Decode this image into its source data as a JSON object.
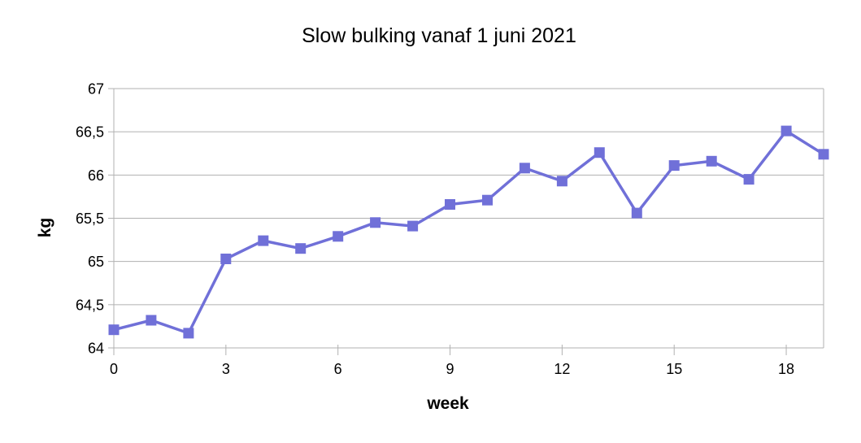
{
  "chart_data": {
    "type": "line",
    "title": "Slow bulking vanaf 1 juni 2021",
    "xlabel": "week",
    "ylabel": "kg",
    "x": [
      0,
      1,
      2,
      3,
      4,
      5,
      6,
      7,
      8,
      9,
      10,
      11,
      12,
      13,
      14,
      15,
      16,
      17,
      18,
      19
    ],
    "series": [
      {
        "name": "kg",
        "values": [
          64.21,
          64.32,
          64.17,
          65.03,
          65.24,
          65.15,
          65.29,
          65.45,
          65.41,
          65.66,
          65.71,
          66.08,
          65.93,
          66.26,
          65.56,
          66.11,
          66.16,
          65.95,
          66.51,
          66.24
        ]
      }
    ],
    "xlim": [
      0,
      19
    ],
    "ylim": [
      64,
      67
    ],
    "x_ticks": [
      0,
      3,
      6,
      9,
      12,
      15,
      18
    ],
    "x_tick_labels": [
      "0",
      "3",
      "6",
      "9",
      "12",
      "15",
      "18"
    ],
    "y_ticks": [
      64,
      64.5,
      65,
      65.5,
      66,
      66.5,
      67
    ],
    "y_tick_labels": [
      "64",
      "64,5",
      "65",
      "65,5",
      "66",
      "66,5",
      "67"
    ],
    "decimal_separator": ",",
    "grid": "horizontal",
    "legend": "none",
    "marker": "square",
    "colors": {
      "series": "#7070d8",
      "grid": "#b1b1b1",
      "axis": "#b1b1b1",
      "text": "#000000",
      "background": "#ffffff"
    }
  }
}
